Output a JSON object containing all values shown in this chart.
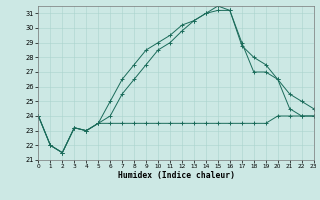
{
  "xlabel": "Humidex (Indice chaleur)",
  "xlim": [
    0,
    23
  ],
  "ylim": [
    21,
    31.5
  ],
  "yticks": [
    21,
    22,
    23,
    24,
    25,
    26,
    27,
    28,
    29,
    30,
    31
  ],
  "xticks": [
    0,
    1,
    2,
    3,
    4,
    5,
    6,
    7,
    8,
    9,
    10,
    11,
    12,
    13,
    14,
    15,
    16,
    17,
    18,
    19,
    20,
    21,
    22,
    23
  ],
  "bg_color": "#cce8e4",
  "grid_color": "#aad4ce",
  "line_color": "#1a6b5a",
  "line1_x": [
    0,
    1,
    2,
    3,
    4,
    5,
    6,
    7,
    8,
    9,
    10,
    11,
    12,
    13,
    14,
    15,
    16,
    17,
    18,
    19,
    20,
    21,
    22,
    23
  ],
  "line1_y": [
    24.0,
    22.0,
    21.5,
    23.2,
    23.0,
    23.5,
    23.5,
    23.5,
    23.5,
    23.5,
    23.5,
    23.5,
    23.5,
    23.5,
    23.5,
    23.5,
    23.5,
    23.5,
    23.5,
    23.5,
    24.0,
    24.0,
    24.0,
    24.0
  ],
  "line2_x": [
    0,
    1,
    2,
    3,
    4,
    5,
    6,
    7,
    8,
    9,
    10,
    11,
    12,
    13,
    14,
    15,
    16,
    17,
    18,
    19,
    20,
    21,
    22,
    23
  ],
  "line2_y": [
    24.0,
    22.0,
    21.5,
    23.2,
    23.0,
    23.5,
    25.0,
    26.5,
    27.5,
    28.5,
    29.0,
    29.5,
    30.2,
    30.5,
    31.0,
    31.2,
    31.2,
    28.8,
    28.0,
    27.5,
    26.5,
    24.5,
    24.0,
    24.0
  ],
  "line3_x": [
    0,
    1,
    2,
    3,
    4,
    5,
    6,
    7,
    8,
    9,
    10,
    11,
    12,
    13,
    14,
    15,
    16,
    17,
    18,
    19,
    20,
    21,
    22,
    23
  ],
  "line3_y": [
    24.0,
    22.0,
    21.5,
    23.2,
    23.0,
    23.5,
    24.0,
    25.5,
    26.5,
    27.5,
    28.5,
    29.0,
    29.8,
    30.5,
    31.0,
    31.5,
    31.2,
    29.0,
    27.0,
    27.0,
    26.5,
    25.5,
    25.0,
    24.5
  ]
}
